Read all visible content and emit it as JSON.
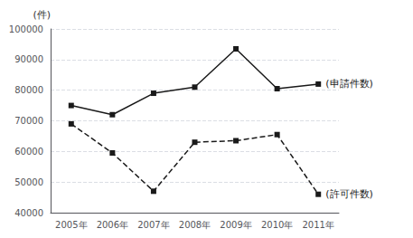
{
  "chart_data": {
    "type": "line",
    "categories": [
      "2005年",
      "2006年",
      "2007年",
      "2008年",
      "2009年",
      "2010年",
      "2011年"
    ],
    "series": [
      {
        "name": "(申請件数)",
        "color": "#1a1a1a",
        "marker": "square",
        "line_style": "solid",
        "values": [
          75000,
          72000,
          79000,
          81000,
          93500,
          80500,
          82000
        ]
      },
      {
        "name": "(許可件数)",
        "color": "#1a1a1a",
        "marker": "square",
        "line_style": "dashed",
        "values": [
          69000,
          59500,
          47000,
          63000,
          63500,
          65500,
          46000
        ]
      }
    ],
    "ylabel": "(件)",
    "ylim": [
      40000,
      100000
    ],
    "yticks": [
      40000,
      50000,
      60000,
      70000,
      80000,
      90000,
      100000
    ],
    "grid": true
  }
}
